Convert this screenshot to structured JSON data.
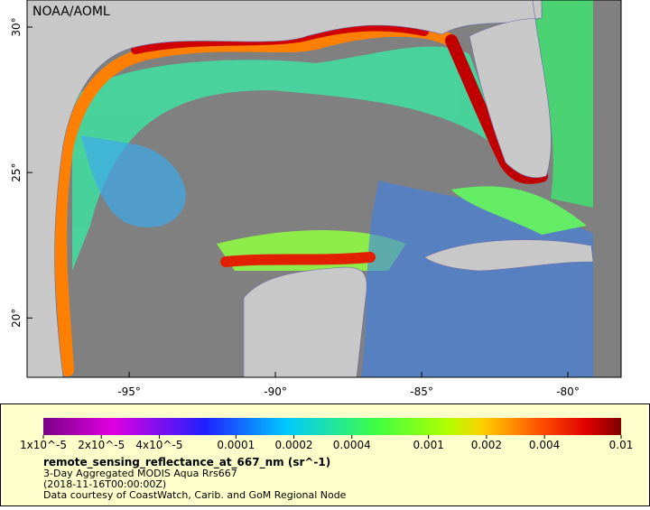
{
  "map": {
    "label": "NOAA/AOML",
    "xlim": [
      -98.49,
      -78.18
    ],
    "ylim": [
      17.96,
      30.93
    ],
    "xticks": [
      {
        "value": -95,
        "label": "-95°"
      },
      {
        "value": -90,
        "label": "-90°"
      },
      {
        "value": -85,
        "label": "-85°"
      },
      {
        "value": -80,
        "label": "-80°"
      }
    ],
    "yticks": [
      {
        "value": 20,
        "label": "20°"
      },
      {
        "value": 25,
        "label": "25°"
      },
      {
        "value": 30,
        "label": "30°"
      }
    ]
  },
  "colorbar": {
    "scale": "log",
    "range": [
      1e-05,
      0.01
    ],
    "ticks": [
      {
        "value": 1e-05,
        "label": "1x10^-5"
      },
      {
        "value": 2e-05,
        "label": "2x10^-5"
      },
      {
        "value": 4e-05,
        "label": "4x10^-5"
      },
      {
        "value": 0.0001,
        "label": "0.0001"
      },
      {
        "value": 0.0002,
        "label": "0.0002"
      },
      {
        "value": 0.0004,
        "label": "0.0004"
      },
      {
        "value": 0.001,
        "label": "0.001"
      },
      {
        "value": 0.002,
        "label": "0.002"
      },
      {
        "value": 0.004,
        "label": "0.004"
      },
      {
        "value": 0.01,
        "label": "0.01"
      }
    ]
  },
  "legend": {
    "variable": "remote_sensing_reflectance_at_667_nm (sr^-1)",
    "dataset": "3-Day Aggregated MODIS Aqua Rrs667",
    "time": "(2018-11-16T00:00:00Z)",
    "credit": "Data courtesy of CoastWatch, Carib. and GoM Regional Node"
  }
}
